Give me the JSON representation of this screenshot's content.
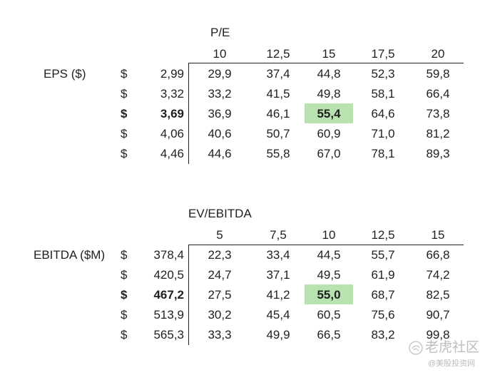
{
  "pe_table": {
    "header": "P/E",
    "row_label": "EPS ($)",
    "cols": [
      "10",
      "12,5",
      "15",
      "17,5",
      "20"
    ],
    "rows": [
      {
        "cur": "$",
        "base": "2,99",
        "vals": [
          "29,9",
          "37,4",
          "44,8",
          "52,3",
          "59,8"
        ]
      },
      {
        "cur": "$",
        "base": "3,32",
        "vals": [
          "33,2",
          "41,5",
          "49,8",
          "58,1",
          "66,4"
        ]
      },
      {
        "cur": "$",
        "base": "3,69",
        "vals": [
          "36,9",
          "46,1",
          "55,4",
          "64,6",
          "73,8"
        ]
      },
      {
        "cur": "$",
        "base": "4,06",
        "vals": [
          "40,6",
          "50,7",
          "60,9",
          "71,0",
          "81,2"
        ]
      },
      {
        "cur": "$",
        "base": "4,46",
        "vals": [
          "44,6",
          "55,8",
          "67,0",
          "78,1",
          "89,3"
        ]
      }
    ],
    "highlight_row": 2,
    "highlight_col": 2
  },
  "ev_table": {
    "header": "EV/EBITDA",
    "row_label": "EBITDA ($M)",
    "cols": [
      "5",
      "7,5",
      "10",
      "12,5",
      "15"
    ],
    "rows": [
      {
        "cur": "$",
        "base": "378,4",
        "vals": [
          "22,3",
          "33,4",
          "44,5",
          "55,7",
          "66,8"
        ]
      },
      {
        "cur": "$",
        "base": "420,5",
        "vals": [
          "24,7",
          "37,1",
          "49,5",
          "61,9",
          "74,2"
        ]
      },
      {
        "cur": "$",
        "base": "467,2",
        "vals": [
          "27,5",
          "41,2",
          "55,0",
          "68,7",
          "82,5"
        ]
      },
      {
        "cur": "$",
        "base": "513,9",
        "vals": [
          "30,2",
          "45,4",
          "60,5",
          "75,6",
          "90,7"
        ]
      },
      {
        "cur": "$",
        "base": "565,3",
        "vals": [
          "33,3",
          "49,9",
          "66,5",
          "83,2",
          "99,8"
        ]
      }
    ],
    "highlight_row": 2,
    "highlight_col": 2
  },
  "watermark": {
    "brand": "老虎社区",
    "sub": "@美股投资网"
  },
  "colors": {
    "highlight": "#b8e3b0",
    "text": "#1f1f1f"
  }
}
